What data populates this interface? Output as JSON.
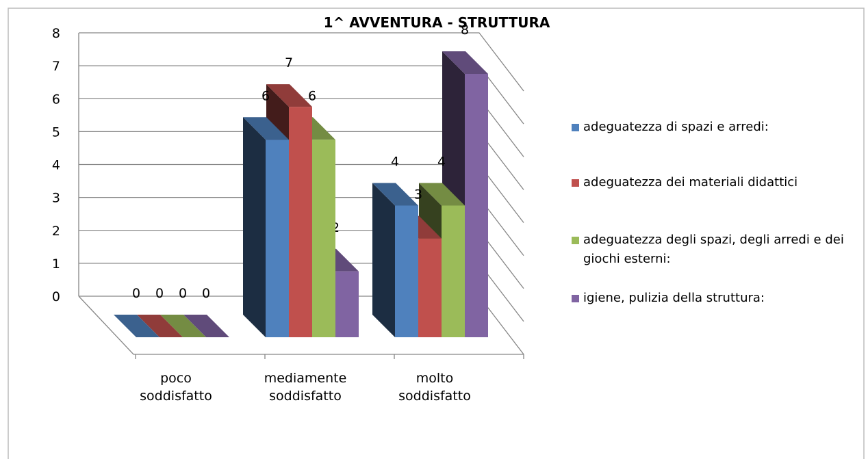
{
  "chart_data": {
    "type": "bar3d",
    "title": "1^ AVVENTURA - STRUTTURA",
    "categories": [
      "poco soddisfatto",
      "mediamente soddisfatto",
      "molto soddisfatto"
    ],
    "series": [
      {
        "name": "adeguatezza di spazi e  arredi:",
        "color": "#4f81bd",
        "values": [
          0,
          6,
          4
        ]
      },
      {
        "name": "adeguatezza dei materiali didattici",
        "color": "#c0504d",
        "values": [
          0,
          7,
          3
        ]
      },
      {
        "name": "adeguatezza degli spazi, degli arredi e dei giochi esterni:",
        "color": "#9bbb59",
        "values": [
          0,
          6,
          4
        ]
      },
      {
        "name": "igiene, pulizia  della struttura:",
        "color": "#8064a2",
        "values": [
          0,
          2,
          8
        ]
      }
    ],
    "ylim": [
      0,
      8
    ],
    "yticks": [
      0,
      1,
      2,
      3,
      4,
      5,
      6,
      7,
      8
    ],
    "grid": true,
    "legend": "right"
  }
}
